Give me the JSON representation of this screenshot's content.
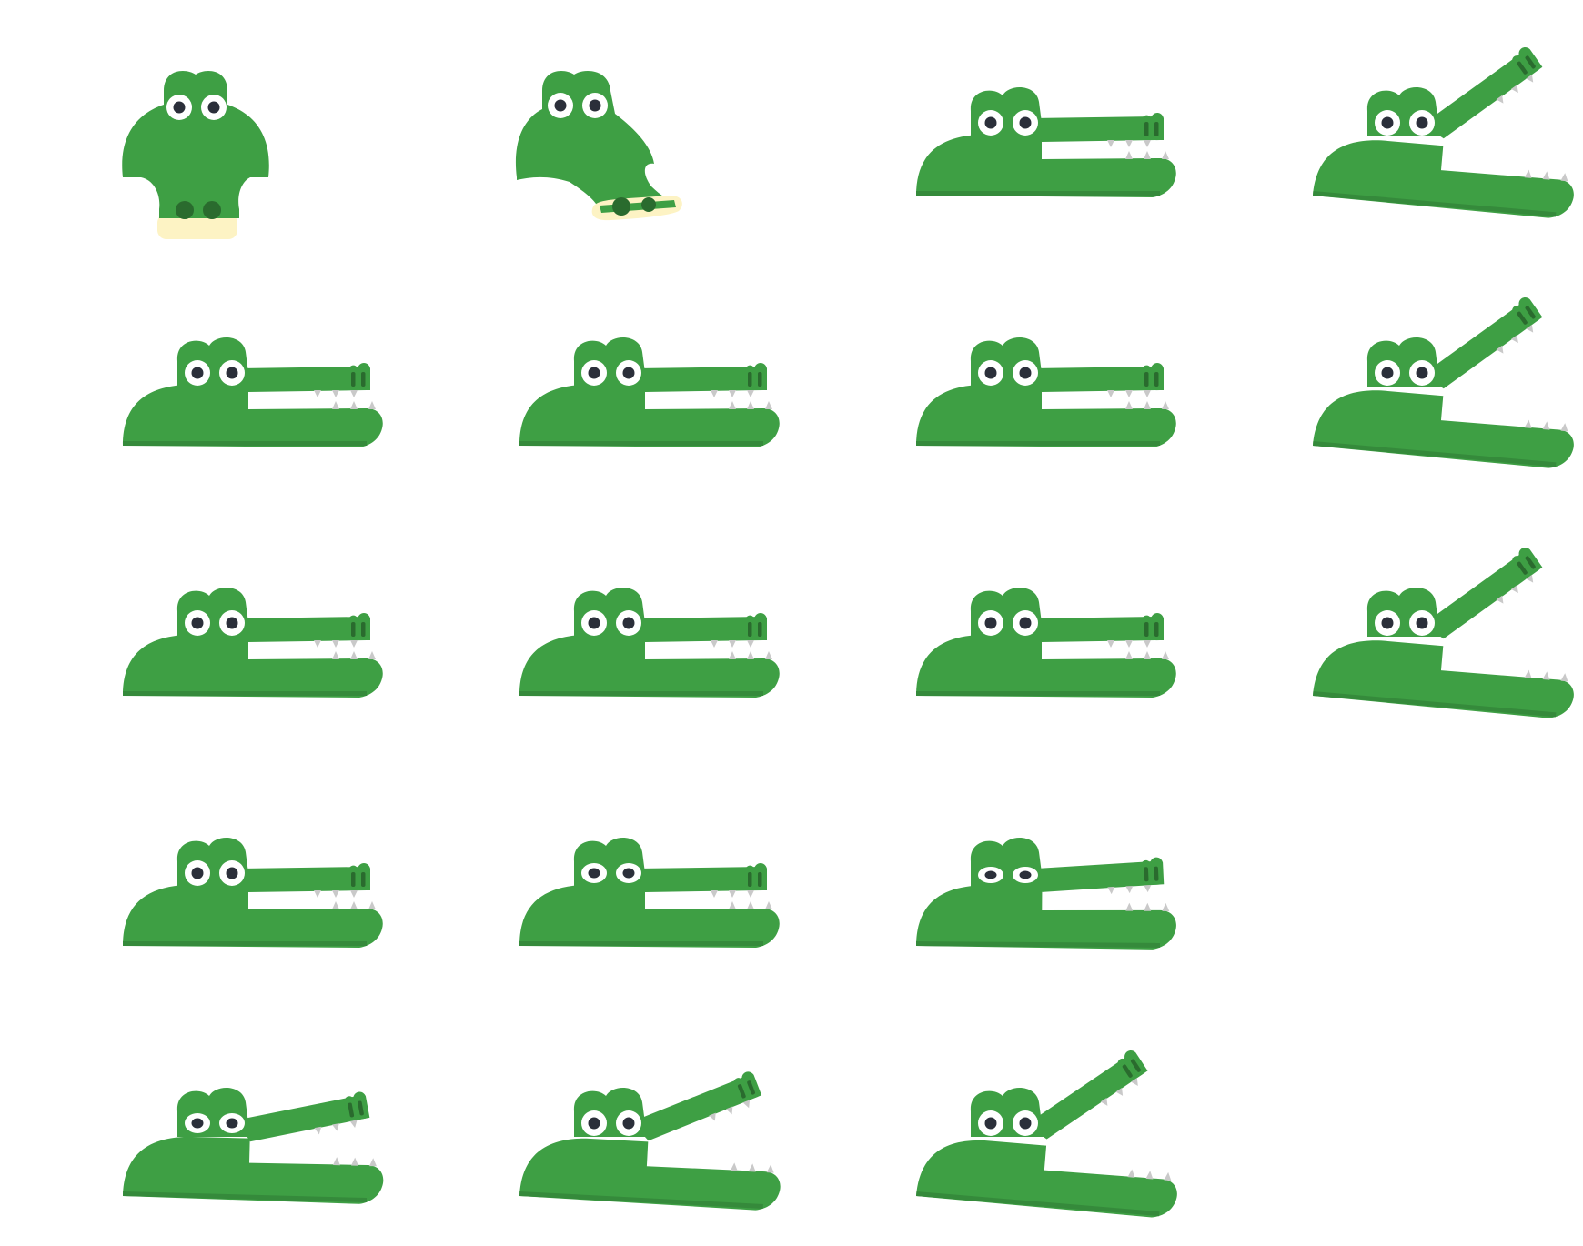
{
  "sheet": {
    "name": "crocodile-sprite-sheet",
    "colors": {
      "body": "#3e9f44",
      "body_shade": "#358a3b",
      "eye_white": "#ffffff",
      "pupil": "#2b2f3a",
      "nostril": "#2a6b2e",
      "tooth": "#c9c9c9",
      "snout_front": "#fdf3c4",
      "background": "#ffffff"
    },
    "frames": [
      {
        "name": "croc-front-view",
        "pose": "front"
      },
      {
        "name": "croc-turning-view",
        "pose": "turn"
      },
      {
        "name": "croc-side-closed",
        "pose": "side",
        "open": 0,
        "eyes": "round"
      },
      {
        "name": "croc-side-open-wide",
        "pose": "side",
        "open": 1,
        "eyes": "round"
      },
      {
        "name": "croc-side-closed",
        "pose": "side",
        "open": 0,
        "eyes": "round"
      },
      {
        "name": "croc-side-closed",
        "pose": "side",
        "open": 0,
        "eyes": "round"
      },
      {
        "name": "croc-side-closed",
        "pose": "side",
        "open": 0,
        "eyes": "round"
      },
      {
        "name": "croc-side-open-wide",
        "pose": "side",
        "open": 1,
        "eyes": "round"
      },
      {
        "name": "croc-side-closed",
        "pose": "side",
        "open": 0,
        "eyes": "round"
      },
      {
        "name": "croc-side-closed",
        "pose": "side",
        "open": 0,
        "eyes": "round"
      },
      {
        "name": "croc-side-closed",
        "pose": "side",
        "open": 0,
        "eyes": "round"
      },
      {
        "name": "croc-side-open-wide",
        "pose": "side",
        "open": 1,
        "eyes": "round"
      },
      {
        "name": "croc-side-closed",
        "pose": "side",
        "open": 0,
        "eyes": "round"
      },
      {
        "name": "croc-side-closed-squint",
        "pose": "side",
        "open": 0,
        "eyes": "squint1"
      },
      {
        "name": "croc-side-closed-squint",
        "pose": "side",
        "open": 0.08,
        "eyes": "squint2"
      },
      null,
      {
        "name": "croc-side-open-slight",
        "pose": "side",
        "open": 0.3,
        "eyes": "squint1"
      },
      {
        "name": "croc-side-open-half",
        "pose": "side",
        "open": 0.6,
        "eyes": "round"
      },
      {
        "name": "croc-side-open-wide",
        "pose": "side",
        "open": 0.95,
        "eyes": "round"
      },
      null
    ]
  }
}
